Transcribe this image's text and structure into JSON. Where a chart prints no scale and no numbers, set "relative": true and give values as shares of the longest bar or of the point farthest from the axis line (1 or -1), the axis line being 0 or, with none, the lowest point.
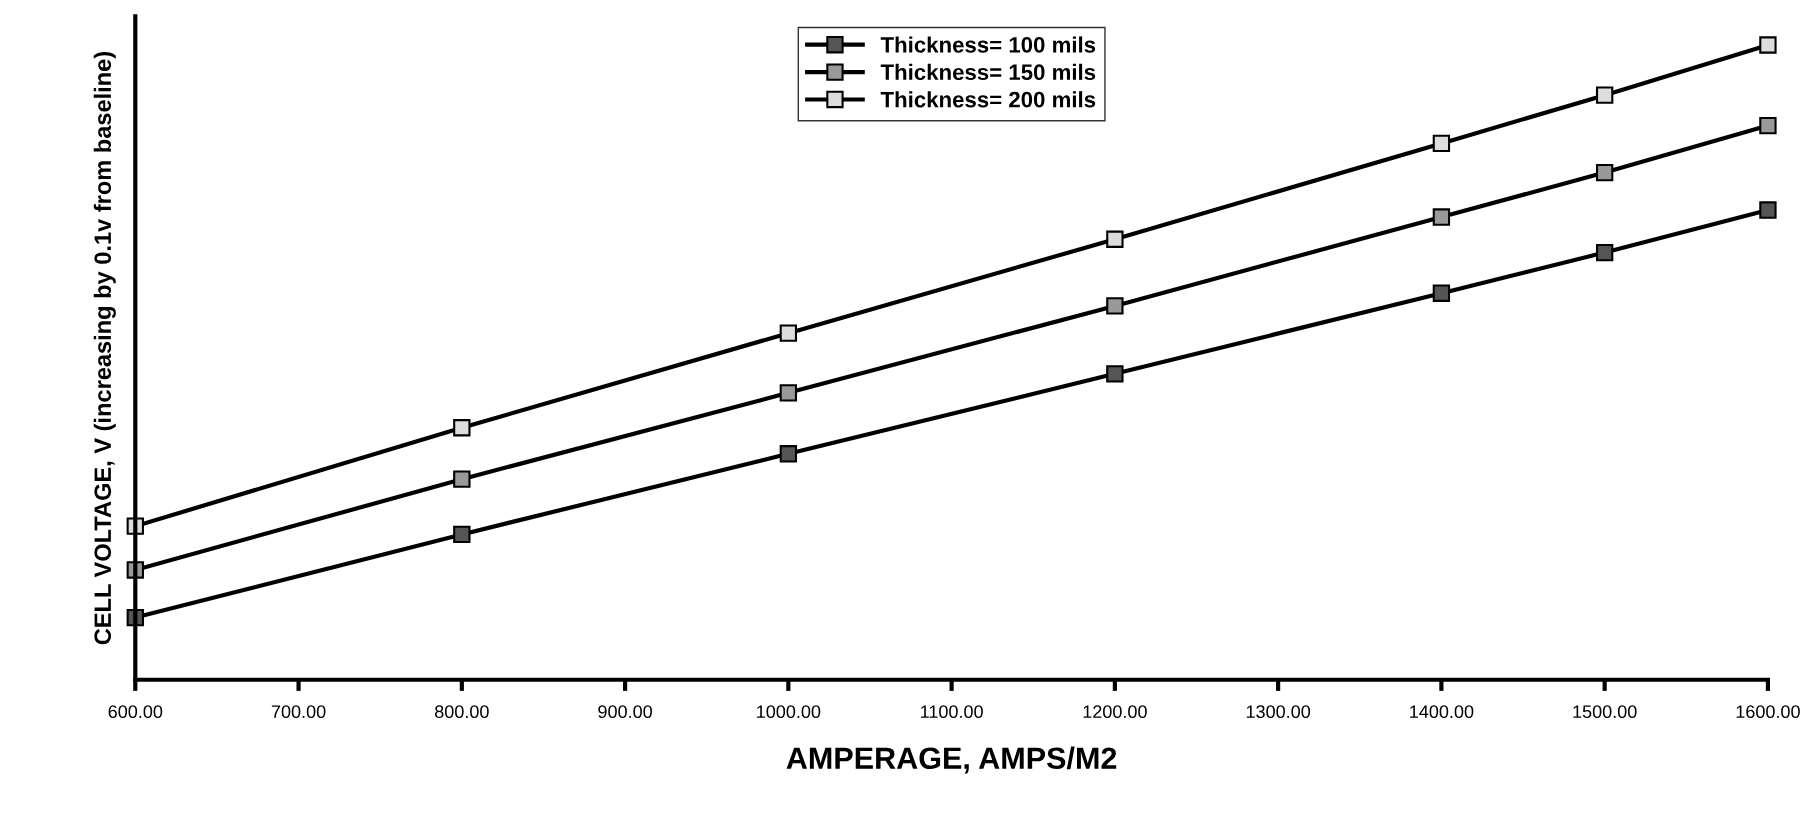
{
  "chart_data": {
    "type": "line",
    "relative": true,
    "xlabel": "AMPERAGE, AMPS/M2",
    "ylabel": "CELL VOLTAGE, V (increasing by 0.1v from baseline)",
    "x": [
      600,
      800,
      1000,
      1200,
      1400,
      1500,
      1600
    ],
    "xlim": [
      600,
      1600
    ],
    "xticks": [
      {
        "value": 600,
        "label": "600.00"
      },
      {
        "value": 700,
        "label": "700.00"
      },
      {
        "value": 800,
        "label": "800.00"
      },
      {
        "value": 900,
        "label": "900.00"
      },
      {
        "value": 1000,
        "label": "1000.00"
      },
      {
        "value": 1100,
        "label": "1100.00"
      },
      {
        "value": 1200,
        "label": "1200.00"
      },
      {
        "value": 1300,
        "label": "1300.00"
      },
      {
        "value": 1400,
        "label": "1400.00"
      },
      {
        "value": 1500,
        "label": "1500.00"
      },
      {
        "value": 1600,
        "label": "1600.00"
      }
    ],
    "series": [
      {
        "name": "Thickness= 100 mils",
        "color": "#000000",
        "values": [
          0.098,
          0.229,
          0.356,
          0.482,
          0.609,
          0.673,
          0.74
        ]
      },
      {
        "name": "Thickness= 150 mils",
        "color": "#000000",
        "values": [
          0.173,
          0.316,
          0.452,
          0.589,
          0.729,
          0.799,
          0.873
        ]
      },
      {
        "name": "Thickness= 200 mils",
        "color": "#000000",
        "values": [
          0.242,
          0.397,
          0.546,
          0.694,
          0.845,
          0.921,
          1.0
        ]
      }
    ],
    "marker": "square",
    "line_style": "solid",
    "legend": "top",
    "grid": false
  }
}
